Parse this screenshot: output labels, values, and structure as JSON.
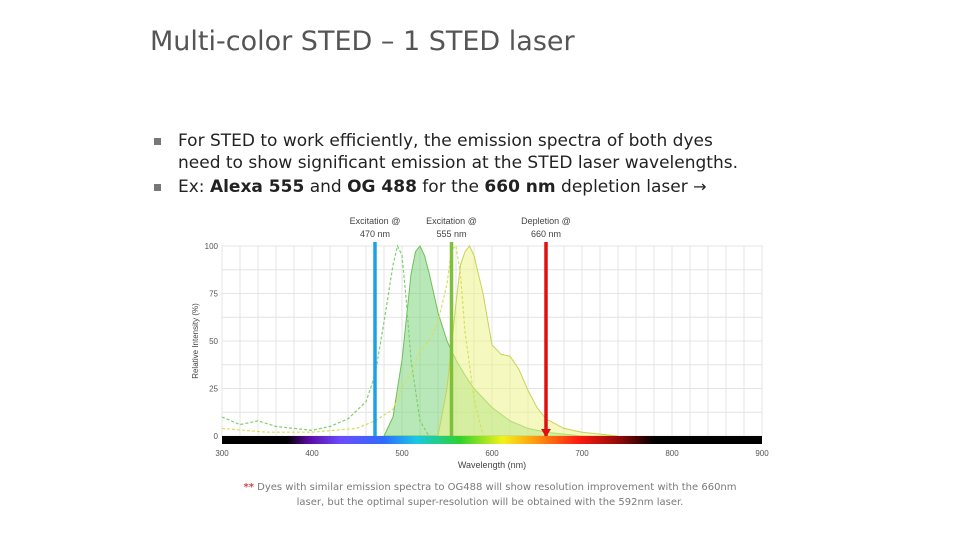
{
  "slide": {
    "title": "Multi-color STED – 1 STED laser"
  },
  "bullets": [
    {
      "line1": "For STED to work efficiently, the emission spectra of both dyes",
      "line2": "need to show significant emission at the STED laser wavelengths."
    },
    {
      "prefix": "Ex: ",
      "dye1": "Alexa 555",
      "mid1": " and ",
      "dye2": "OG 488",
      "mid2": " for the ",
      "laser": "660 nm",
      "suffix": " depletion laser ",
      "arrow": "→"
    }
  ],
  "footnote": {
    "stars": "**",
    "line1": " Dyes with similar emission spectra to OG488 will show resolution improvement with the 660nm",
    "line2": "laser, but the optimal super-resolution will be obtained with the 592nm laser."
  },
  "colors": {
    "excitation_470": "#1ea0e6",
    "excitation_555": "#7fbf3a",
    "depletion_660": "#e01010",
    "og488_fill": "#7ed67e",
    "alexa555_fill": "#ecf28a"
  },
  "chart_data": {
    "type": "area",
    "xlabel": "Wavelength (nm)",
    "ylabel": "Relative Intensity (%)",
    "xlim": [
      300,
      900
    ],
    "ylim": [
      0,
      100
    ],
    "xticks": [
      "300",
      "400",
      "500",
      "600",
      "700",
      "800",
      "900"
    ],
    "yticks": [
      "0",
      "25",
      "50",
      "75",
      "100"
    ],
    "grid": true,
    "markers": [
      {
        "label_line1": "Excitation @",
        "label_line2": "470 nm",
        "x": 470,
        "color": "#1ea0e6"
      },
      {
        "label_line1": "Excitation @",
        "label_line2": "555 nm",
        "x": 555,
        "color": "#7fbf3a"
      },
      {
        "label_line1": "Depletion @",
        "label_line2": "660 nm",
        "x": 660,
        "color": "#e01010"
      }
    ],
    "series": [
      {
        "kind": "emission",
        "fill": "#7ed67e",
        "stroke": "#6fbf5a",
        "x": [
          480,
          490,
          500,
          510,
          515,
          520,
          525,
          530,
          540,
          550,
          560,
          570,
          580,
          600,
          620,
          640,
          660,
          680,
          700
        ],
        "y": [
          0,
          10,
          40,
          85,
          97,
          100,
          95,
          86,
          65,
          50,
          40,
          32,
          25,
          15,
          8,
          4,
          2,
          1,
          0
        ]
      },
      {
        "kind": "emission",
        "fill": "#ecf28a",
        "stroke": "#c8d25a",
        "x": [
          540,
          550,
          560,
          565,
          570,
          575,
          580,
          590,
          600,
          610,
          620,
          630,
          640,
          650,
          660,
          680,
          700,
          720,
          740
        ],
        "y": [
          0,
          25,
          70,
          90,
          97,
          100,
          95,
          75,
          48,
          43,
          42,
          35,
          24,
          15,
          9,
          4,
          2,
          1,
          0
        ]
      },
      {
        "kind": "excitation",
        "stroke": "#7fcf6f",
        "dashed": true,
        "x": [
          300,
          320,
          340,
          360,
          380,
          400,
          420,
          440,
          460,
          470,
          480,
          490,
          495,
          500,
          505,
          510,
          520,
          530
        ],
        "y": [
          10,
          6,
          8,
          5,
          4,
          3,
          5,
          9,
          18,
          32,
          60,
          90,
          100,
          95,
          70,
          40,
          8,
          0
        ]
      },
      {
        "kind": "excitation",
        "stroke": "#d8e05a",
        "dashed": true,
        "x": [
          300,
          350,
          400,
          450,
          470,
          490,
          500,
          510,
          520,
          530,
          540,
          550,
          555,
          560,
          565,
          570,
          580,
          590
        ],
        "y": [
          4,
          2,
          2,
          4,
          8,
          14,
          25,
          33,
          45,
          50,
          60,
          80,
          98,
          100,
          85,
          55,
          20,
          0
        ]
      }
    ]
  }
}
